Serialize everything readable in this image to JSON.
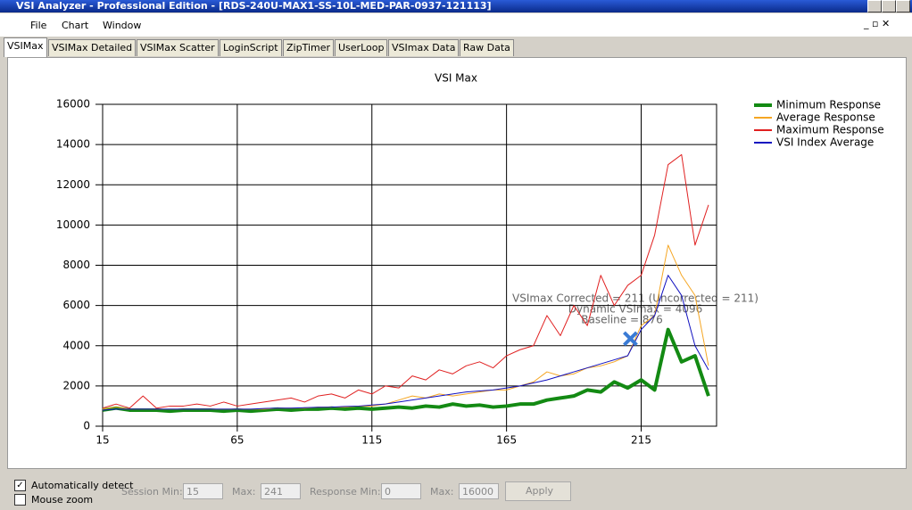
{
  "window": {
    "title": "VSI Analyzer - Professional Edition - [RDS-240U-MAX1-SS-10L-MED-PAR-0937-121113]"
  },
  "menu": [
    "File",
    "Chart",
    "Window"
  ],
  "tabs": [
    "VSIMax",
    "VSIMax Detailed",
    "VSIMax Scatter",
    "LoginScript",
    "ZipTimer",
    "UserLoop",
    "VSImax Data",
    "Raw Data"
  ],
  "chart_data": {
    "type": "line",
    "title": "VSI Max",
    "x": [
      15,
      20,
      25,
      30,
      35,
      40,
      45,
      50,
      55,
      60,
      65,
      70,
      75,
      80,
      85,
      90,
      95,
      100,
      105,
      110,
      115,
      120,
      125,
      130,
      135,
      140,
      145,
      150,
      155,
      160,
      165,
      170,
      175,
      180,
      185,
      190,
      195,
      200,
      205,
      210,
      215,
      220,
      225,
      230,
      235,
      240
    ],
    "xlim": [
      15,
      243
    ],
    "xticks": [
      15,
      65,
      115,
      165,
      215
    ],
    "ylim": [
      0,
      16000
    ],
    "yticks": [
      0,
      2000,
      4000,
      6000,
      8000,
      10000,
      12000,
      14000,
      16000
    ],
    "grid": true,
    "legend": "right",
    "series": [
      {
        "name": "Minimum Response",
        "color": "#138a13",
        "values": [
          800,
          900,
          800,
          800,
          800,
          750,
          800,
          800,
          800,
          750,
          800,
          750,
          800,
          850,
          800,
          850,
          850,
          900,
          850,
          900,
          850,
          900,
          950,
          900,
          1000,
          950,
          1100,
          1000,
          1050,
          950,
          1000,
          1100,
          1100,
          1300,
          1400,
          1500,
          1800,
          1700,
          2200,
          1900,
          2300,
          1800,
          4800,
          3200,
          3500,
          1500
        ]
      },
      {
        "name": "Average Response",
        "color": "#f5a623",
        "values": [
          850,
          950,
          850,
          850,
          850,
          850,
          850,
          850,
          850,
          850,
          850,
          850,
          850,
          900,
          900,
          900,
          950,
          950,
          950,
          1000,
          1000,
          1100,
          1300,
          1500,
          1400,
          1600,
          1500,
          1600,
          1700,
          1800,
          1800,
          2000,
          2200,
          2700,
          2500,
          2600,
          2900,
          3000,
          3200,
          3500,
          5000,
          5500,
          9000,
          7500,
          6500,
          3000
        ]
      },
      {
        "name": "Maximum Response",
        "color": "#e02020",
        "values": [
          900,
          1100,
          900,
          1500,
          900,
          1000,
          1000,
          1100,
          1000,
          1200,
          1000,
          1100,
          1200,
          1300,
          1400,
          1200,
          1500,
          1600,
          1400,
          1800,
          1600,
          2000,
          1900,
          2500,
          2300,
          2800,
          2600,
          3000,
          3200,
          2900,
          3500,
          3800,
          4000,
          5500,
          4500,
          6000,
          5000,
          7500,
          6000,
          7000,
          7500,
          9500,
          13000,
          13500,
          9000,
          11000
        ]
      },
      {
        "name": "VSI Index Average",
        "color": "#1010c0",
        "values": [
          800,
          850,
          850,
          850,
          850,
          850,
          850,
          850,
          850,
          850,
          850,
          850,
          880,
          900,
          900,
          920,
          940,
          950,
          980,
          1000,
          1050,
          1100,
          1200,
          1300,
          1400,
          1500,
          1600,
          1700,
          1750,
          1800,
          1900,
          2000,
          2150,
          2300,
          2500,
          2700,
          2900,
          3100,
          3300,
          3500,
          4800,
          5500,
          7500,
          6500,
          4000,
          2800
        ]
      }
    ],
    "annotations": [
      "VSImax Corrected = 211 (Uncorrected = 211)",
      "Dynamic VSImax = 4096",
      "Baseline = 876"
    ],
    "marker": {
      "x": 211,
      "y": 4350
    }
  },
  "controls": {
    "auto_detect": "Automatically detect",
    "mouse_zoom": "Mouse zoom",
    "session_min_label": "Session Min:",
    "session_min": "15",
    "max_label": "Max:",
    "session_max": "241",
    "response_min_label": "Response Min:",
    "response_min": "0",
    "response_max_label": "Max:",
    "response_max": "16000",
    "apply": "Apply"
  }
}
